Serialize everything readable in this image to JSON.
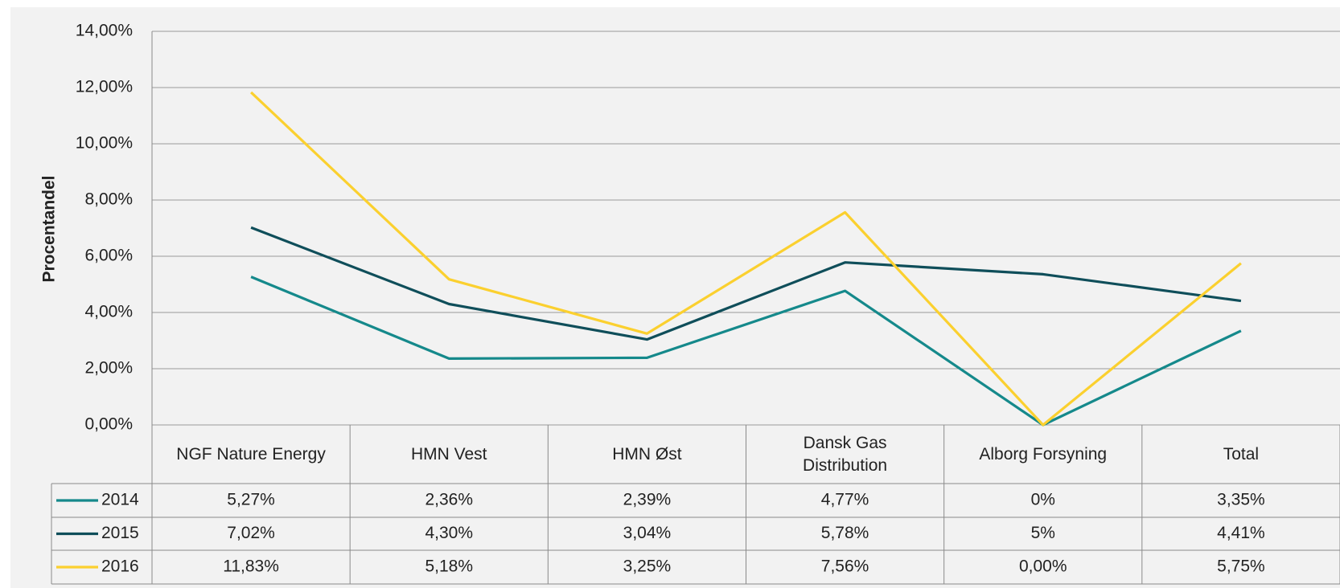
{
  "chart_data": {
    "type": "line",
    "y_label": "Procentandel",
    "categories": [
      "NGF Nature Energy",
      "HMN Vest",
      "HMN Øst",
      "Dansk Gas Distribution",
      "Alborg Forsyning",
      "Total"
    ],
    "series": [
      {
        "name": "2014",
        "color": "#15898b",
        "values": [
          5.27,
          2.36,
          2.39,
          4.77,
          0,
          3.35
        ],
        "value_labels": [
          "5,27%",
          "2,36%",
          "2,39%",
          "4,77%",
          "0%",
          "3,35%"
        ]
      },
      {
        "name": "2015",
        "color": "#0f4e5a",
        "values": [
          7.02,
          4.3,
          3.04,
          5.78,
          5.36,
          4.41
        ],
        "value_labels": [
          "7,02%",
          "4,30%",
          "3,04%",
          "5,78%",
          "5%",
          "4,41%"
        ]
      },
      {
        "name": "2016",
        "color": "#fbd02f",
        "values": [
          11.83,
          5.18,
          3.25,
          7.56,
          0.0,
          5.75
        ],
        "value_labels": [
          "11,83%",
          "5,18%",
          "3,25%",
          "7,56%",
          "0,00%",
          "5,75%"
        ]
      }
    ],
    "ylim": [
      0,
      14
    ],
    "yticks": [
      {
        "value": 0,
        "label": "0,00%"
      },
      {
        "value": 2,
        "label": "2,00%"
      },
      {
        "value": 4,
        "label": "4,00%"
      },
      {
        "value": 6,
        "label": "6,00%"
      },
      {
        "value": 8,
        "label": "8,00%"
      },
      {
        "value": 10,
        "label": "10,00%"
      },
      {
        "value": 12,
        "label": "12,00%"
      },
      {
        "value": 14,
        "label": "14,00%"
      }
    ],
    "grid": true
  }
}
